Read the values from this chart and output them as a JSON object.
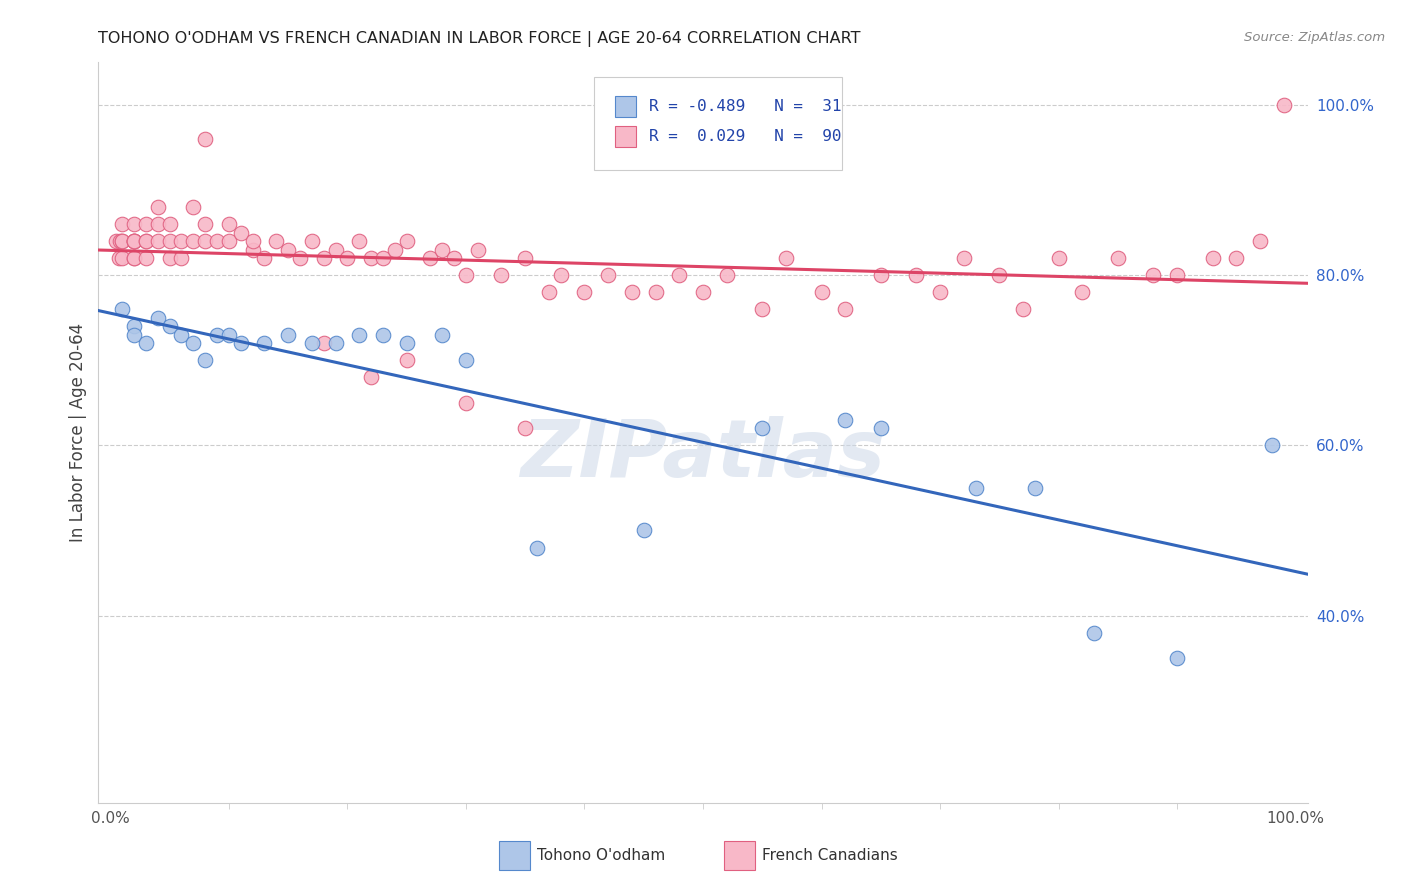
{
  "title": "TOHONO O'ODHAM VS FRENCH CANADIAN IN LABOR FORCE | AGE 20-64 CORRELATION CHART",
  "source": "Source: ZipAtlas.com",
  "ylabel": "In Labor Force | Age 20-64",
  "background_color": "#ffffff",
  "blue_face": "#aec6e8",
  "blue_edge": "#5588cc",
  "pink_face": "#f8b8c8",
  "pink_edge": "#e06080",
  "blue_line": "#3366bb",
  "pink_line": "#dd4466",
  "watermark": "ZIPatlas",
  "legend_text_color": "#2244aa",
  "ytick_color": "#3366cc",
  "xtick_color": "#555555",
  "grid_color": "#cccccc",
  "tohono_x": [
    0.01,
    0.02,
    0.02,
    0.03,
    0.04,
    0.05,
    0.06,
    0.07,
    0.08,
    0.09,
    0.1,
    0.11,
    0.13,
    0.15,
    0.17,
    0.19,
    0.21,
    0.23,
    0.25,
    0.28,
    0.3,
    0.36,
    0.45,
    0.55,
    0.62,
    0.65,
    0.73,
    0.78,
    0.83,
    0.9,
    0.98
  ],
  "tohono_y": [
    0.76,
    0.74,
    0.73,
    0.72,
    0.75,
    0.74,
    0.73,
    0.72,
    0.7,
    0.73,
    0.73,
    0.72,
    0.72,
    0.73,
    0.72,
    0.72,
    0.73,
    0.73,
    0.72,
    0.73,
    0.7,
    0.48,
    0.5,
    0.62,
    0.63,
    0.62,
    0.55,
    0.55,
    0.38,
    0.35,
    0.6
  ],
  "french_x": [
    0.005,
    0.007,
    0.008,
    0.01,
    0.01,
    0.01,
    0.01,
    0.02,
    0.02,
    0.02,
    0.02,
    0.02,
    0.02,
    0.02,
    0.03,
    0.03,
    0.03,
    0.03,
    0.04,
    0.04,
    0.04,
    0.05,
    0.05,
    0.05,
    0.06,
    0.06,
    0.07,
    0.07,
    0.08,
    0.08,
    0.09,
    0.1,
    0.1,
    0.11,
    0.12,
    0.12,
    0.13,
    0.14,
    0.15,
    0.16,
    0.17,
    0.18,
    0.19,
    0.2,
    0.21,
    0.22,
    0.23,
    0.24,
    0.25,
    0.27,
    0.28,
    0.29,
    0.3,
    0.31,
    0.33,
    0.35,
    0.37,
    0.38,
    0.4,
    0.42,
    0.44,
    0.46,
    0.48,
    0.5,
    0.52,
    0.55,
    0.57,
    0.6,
    0.62,
    0.65,
    0.68,
    0.7,
    0.72,
    0.75,
    0.77,
    0.8,
    0.82,
    0.85,
    0.88,
    0.9,
    0.93,
    0.95,
    0.97,
    0.99,
    0.25,
    0.3,
    0.35,
    0.18,
    0.22,
    0.08
  ],
  "french_y": [
    0.84,
    0.82,
    0.84,
    0.84,
    0.86,
    0.84,
    0.82,
    0.84,
    0.84,
    0.86,
    0.84,
    0.82,
    0.82,
    0.84,
    0.84,
    0.86,
    0.84,
    0.82,
    0.88,
    0.86,
    0.84,
    0.86,
    0.84,
    0.82,
    0.84,
    0.82,
    0.88,
    0.84,
    0.86,
    0.84,
    0.84,
    0.86,
    0.84,
    0.85,
    0.83,
    0.84,
    0.82,
    0.84,
    0.83,
    0.82,
    0.84,
    0.82,
    0.83,
    0.82,
    0.84,
    0.82,
    0.82,
    0.83,
    0.84,
    0.82,
    0.83,
    0.82,
    0.8,
    0.83,
    0.8,
    0.82,
    0.78,
    0.8,
    0.78,
    0.8,
    0.78,
    0.78,
    0.8,
    0.78,
    0.8,
    0.76,
    0.82,
    0.78,
    0.76,
    0.8,
    0.8,
    0.78,
    0.82,
    0.8,
    0.76,
    0.82,
    0.78,
    0.82,
    0.8,
    0.8,
    0.82,
    0.82,
    0.84,
    1.0,
    0.7,
    0.65,
    0.62,
    0.72,
    0.68,
    0.96
  ],
  "ylim_low": 0.18,
  "ylim_high": 1.05,
  "yticks": [
    0.4,
    0.6,
    0.8,
    1.0
  ],
  "ytick_labels": [
    "40.0%",
    "60.0%",
    "80.0%",
    "100.0%"
  ],
  "xtick_labels": [
    "0.0%",
    "100.0%"
  ]
}
